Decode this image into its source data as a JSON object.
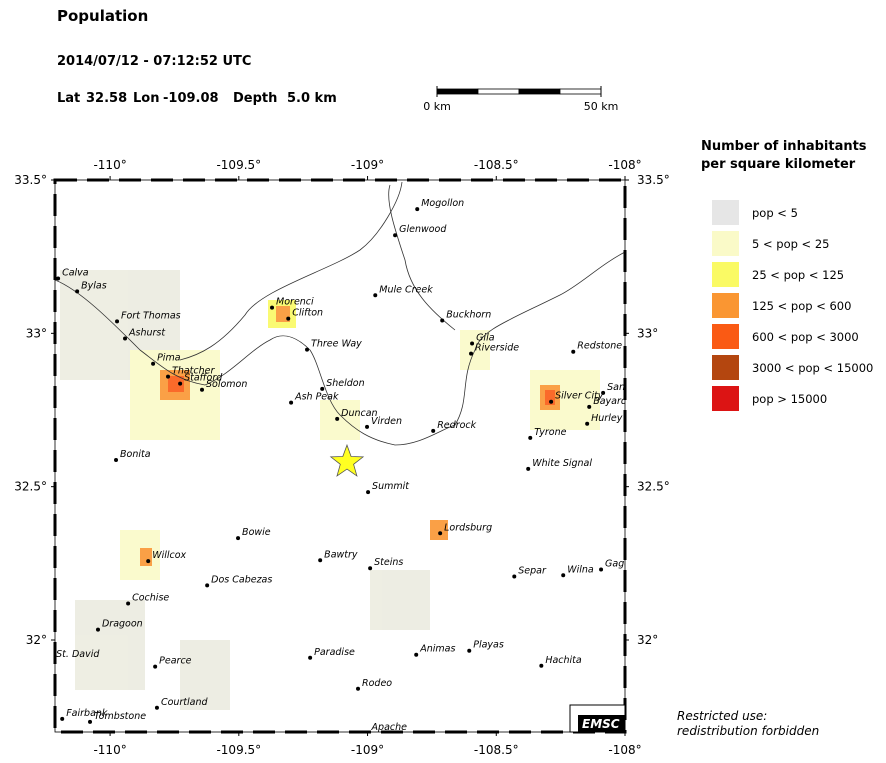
{
  "header": {
    "title": "Population",
    "datetime": "2014/07/12 - 07:12:52 UTC",
    "lat_label": "Lat",
    "lon_label": "Lon",
    "depth_label": "Depth"
  },
  "epicenter": {
    "lat": 32.58,
    "lon": -109.08,
    "depth": {
      "value": 5,
      "label": "5.0 km"
    }
  },
  "scale_bar": {
    "ticks": [
      {
        "value": 0,
        "label": "0 km"
      },
      {
        "value": 50,
        "label": "50 km"
      }
    ]
  },
  "map": {
    "lonlim": [
      -110.214,
      -108
    ],
    "latlim": [
      31.7,
      33.5
    ],
    "lonticks": [
      {
        "value": -110,
        "label": "-110°"
      },
      {
        "value": -109.5,
        "label": "-109.5°"
      },
      {
        "value": -109,
        "label": "-109°"
      },
      {
        "value": -108.5,
        "label": "-108.5°"
      },
      {
        "value": -108,
        "label": "-108°"
      }
    ],
    "latticks": [
      {
        "value": 33.5,
        "label": "33.5°"
      },
      {
        "value": 33,
        "label": "33°"
      },
      {
        "value": 32.5,
        "label": "32.5°"
      },
      {
        "value": 32,
        "label": "32°"
      }
    ],
    "cities": [
      {
        "name": "Mogollon",
        "lon": -108.807,
        "lat": 33.405
      },
      {
        "name": "Glenwood",
        "lon": -108.893,
        "lat": 33.32
      },
      {
        "name": "Mule Creek",
        "lon": -108.97,
        "lat": 33.124
      },
      {
        "name": "Calva",
        "lon": -110.202,
        "lat": 33.179
      },
      {
        "name": "Bylas",
        "lon": -110.128,
        "lat": 33.137
      },
      {
        "name": "Fort Thomas",
        "lon": -109.973,
        "lat": 33.039
      },
      {
        "name": "Ashurst",
        "lon": -109.942,
        "lat": 32.983
      },
      {
        "name": "Morenci",
        "lon": -109.371,
        "lat": 33.084
      },
      {
        "name": "Clifton",
        "lon": -109.308,
        "lat": 33.048
      },
      {
        "name": "Three Way",
        "lon": -109.235,
        "lat": 32.947
      },
      {
        "name": "Pima",
        "lon": -109.833,
        "lat": 32.901
      },
      {
        "name": "Thatcher",
        "lon": -109.775,
        "lat": 32.859
      },
      {
        "name": "Stafford",
        "lon": -109.728,
        "lat": 32.836
      },
      {
        "name": "Solomon",
        "lon": -109.643,
        "lat": 32.816
      },
      {
        "name": "Sheldon",
        "lon": -109.176,
        "lat": 32.819
      },
      {
        "name": "Ash Peak",
        "lon": -109.297,
        "lat": 32.774
      },
      {
        "name": "Duncan",
        "lon": -109.118,
        "lat": 32.721
      },
      {
        "name": "Virden",
        "lon": -109.002,
        "lat": 32.695
      },
      {
        "name": "Redrock",
        "lon": -108.745,
        "lat": 32.682
      },
      {
        "name": "Buckhorn",
        "lon": -108.71,
        "lat": 33.042
      },
      {
        "name": "Gila",
        "lon": -108.594,
        "lat": 32.967
      },
      {
        "name": "Riverside",
        "lon": -108.598,
        "lat": 32.934
      },
      {
        "name": "Redstone",
        "lon": -108.201,
        "lat": 32.94
      },
      {
        "name": "Silver City",
        "lon": -108.287,
        "lat": 32.777
      },
      {
        "name": "Santa Clara",
        "lon": -108.085,
        "lat": 32.806
      },
      {
        "name": "Bayard",
        "lon": -108.139,
        "lat": 32.76
      },
      {
        "name": "Hurley",
        "lon": -108.147,
        "lat": 32.705
      },
      {
        "name": "Tyrone",
        "lon": -108.368,
        "lat": 32.659
      },
      {
        "name": "White Signal",
        "lon": -108.376,
        "lat": 32.558
      },
      {
        "name": "Bonita",
        "lon": -109.977,
        "lat": 32.587
      },
      {
        "name": "Summit",
        "lon": -108.998,
        "lat": 32.482
      },
      {
        "name": "Lordsburg",
        "lon": -108.718,
        "lat": 32.348
      },
      {
        "name": "Bowie",
        "lon": -109.503,
        "lat": 32.332
      },
      {
        "name": "Willcox",
        "lon": -109.852,
        "lat": 32.257
      },
      {
        "name": "Bawtry",
        "lon": -109.184,
        "lat": 32.26
      },
      {
        "name": "Steins",
        "lon": -108.99,
        "lat": 32.234
      },
      {
        "name": "Separ",
        "lon": -108.43,
        "lat": 32.207
      },
      {
        "name": "Wilna",
        "lon": -108.24,
        "lat": 32.211
      },
      {
        "name": "Gage",
        "lon": -108.093,
        "lat": 32.23
      },
      {
        "name": "Dos Cabezas",
        "lon": -109.623,
        "lat": 32.178
      },
      {
        "name": "Cochise",
        "lon": -109.93,
        "lat": 32.119
      },
      {
        "name": "Dragoon",
        "lon": -110.047,
        "lat": 32.034
      },
      {
        "name": "Paradise",
        "lon": -109.223,
        "lat": 31.942
      },
      {
        "name": "Animas",
        "lon": -108.811,
        "lat": 31.952
      },
      {
        "name": "Playas",
        "lon": -108.605,
        "lat": 31.965
      },
      {
        "name": "Hachita",
        "lon": -108.325,
        "lat": 31.916
      },
      {
        "name": "St. David",
        "lon": -110.225,
        "lat": 31.935
      },
      {
        "name": "Pearce",
        "lon": -109.825,
        "lat": 31.913
      },
      {
        "name": "Rodeo",
        "lon": -109.037,
        "lat": 31.841
      },
      {
        "name": "Courtland",
        "lon": -109.818,
        "lat": 31.779
      },
      {
        "name": "Fairbank",
        "lon": -110.186,
        "lat": 31.743
      },
      {
        "name": "Tombstone",
        "lon": -110.078,
        "lat": 31.733
      },
      {
        "name": "Apache",
        "lon": -109.0,
        "lat": 31.697
      }
    ]
  },
  "legend": {
    "title": [
      "Number of inhabitants",
      "per square kilometer"
    ],
    "items": [
      {
        "label": "pop < 5",
        "color": "#e6e6e6"
      },
      {
        "label": "5 < pop < 25",
        "color": "#fafac8"
      },
      {
        "label": "25 < pop < 125",
        "color": "#fafa64"
      },
      {
        "label": "125 < pop < 600",
        "color": "#fa9632"
      },
      {
        "label": "600 < pop < 3000",
        "color": "#fa5a14"
      },
      {
        "label": "3000 < pop < 15000",
        "color": "#b4460f"
      },
      {
        "label": "pop > 15000",
        "color": "#dc1414"
      }
    ]
  },
  "logo": "EMSC",
  "note": [
    "Restricted use:",
    "redistribution forbidden"
  ]
}
